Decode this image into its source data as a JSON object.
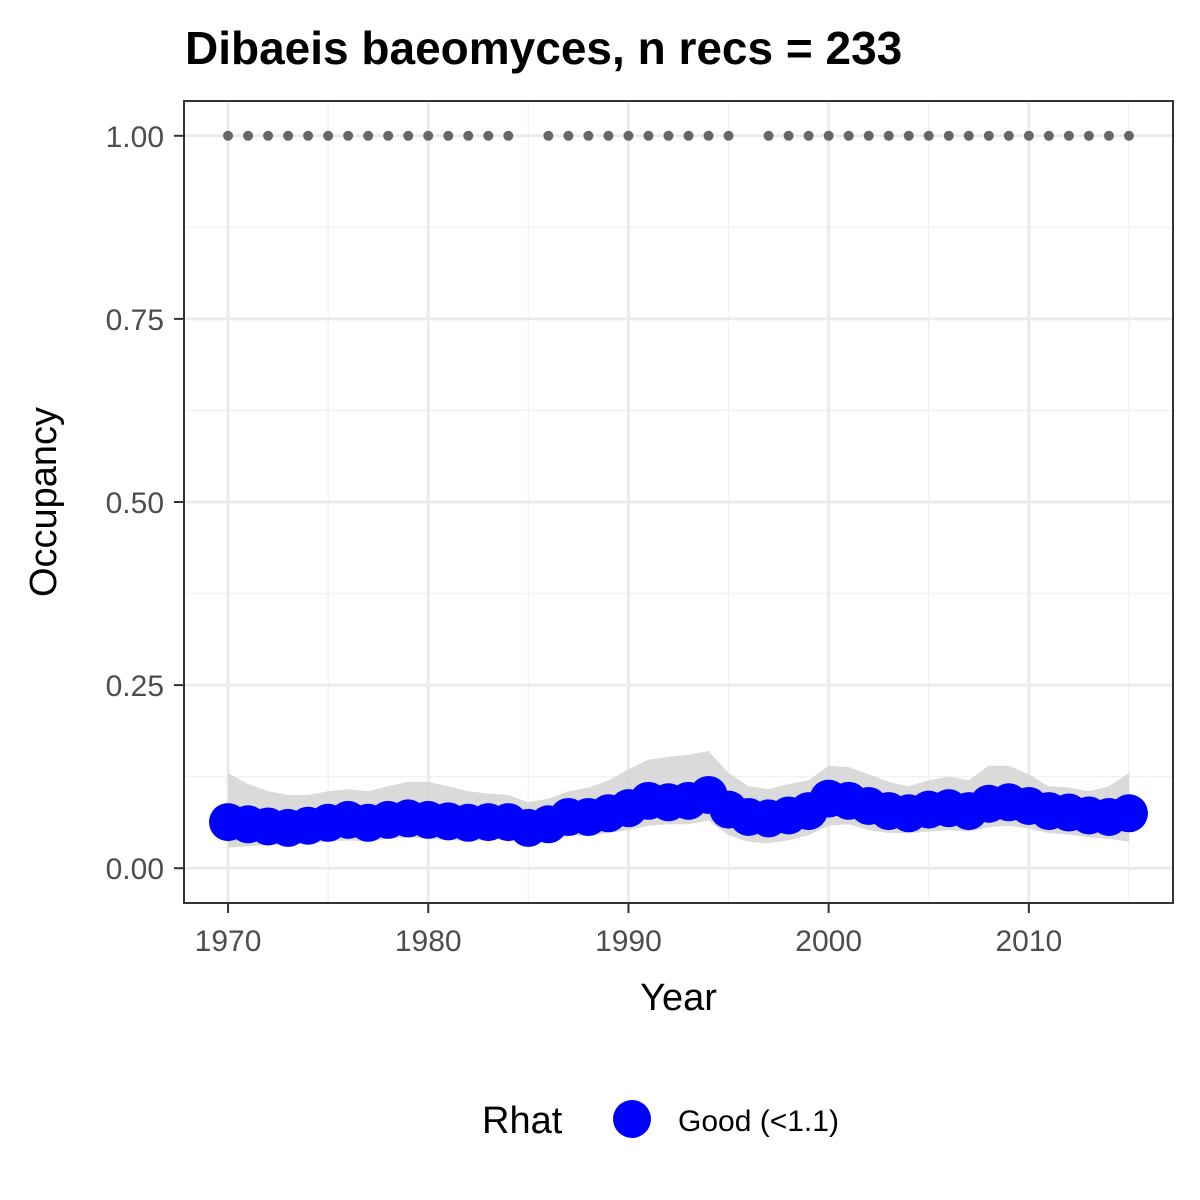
{
  "chart_data": {
    "type": "line",
    "title": "Dibaeis baeomyces, n recs = 233",
    "xlabel": "Year",
    "ylabel": "Occupancy",
    "xlim": [
      1967.8,
      1917.2
    ],
    "ylim": [
      -0.0475,
      1.0475
    ],
    "x_ticks": [
      1970,
      1980,
      1990,
      2000,
      2010
    ],
    "x_tick_labels": [
      "1970",
      "1980",
      "1990",
      "2000",
      "2010"
    ],
    "y_ticks": [
      0,
      0.25,
      0.5,
      0.75,
      1.0
    ],
    "y_tick_labels": [
      "0.00",
      "0.25",
      "0.50",
      "0.75",
      "1.00"
    ],
    "grid": true,
    "colors": {
      "series": "#0000ff",
      "ribbon": "#d3d3d3",
      "records": "#666666",
      "grid": "#ebebeb",
      "border": "#333333"
    },
    "series": [
      {
        "x": [
          1970,
          1971,
          1972,
          1973,
          1974,
          1975,
          1976,
          1977,
          1978,
          1979,
          1980,
          1981,
          1982,
          1983,
          1984,
          1985,
          1986,
          1987,
          1988,
          1989,
          1990,
          1991,
          1992,
          1993,
          1994,
          1995,
          1996,
          1997,
          1998,
          1999,
          2000,
          2001,
          2002,
          2003,
          2004,
          2005,
          2006,
          2007,
          2008,
          2009,
          2010,
          2011,
          2012,
          2013,
          2014,
          2015
        ],
        "y": [
          0.063,
          0.06,
          0.057,
          0.055,
          0.058,
          0.062,
          0.066,
          0.062,
          0.066,
          0.068,
          0.066,
          0.064,
          0.062,
          0.063,
          0.063,
          0.055,
          0.06,
          0.07,
          0.07,
          0.075,
          0.082,
          0.092,
          0.09,
          0.092,
          0.1,
          0.08,
          0.07,
          0.068,
          0.072,
          0.078,
          0.095,
          0.092,
          0.085,
          0.078,
          0.075,
          0.08,
          0.082,
          0.078,
          0.088,
          0.09,
          0.085,
          0.078,
          0.076,
          0.072,
          0.07,
          0.075
        ],
        "lower": [
          0.028,
          0.03,
          0.032,
          0.032,
          0.034,
          0.036,
          0.038,
          0.036,
          0.04,
          0.042,
          0.04,
          0.038,
          0.038,
          0.038,
          0.04,
          0.035,
          0.036,
          0.044,
          0.044,
          0.048,
          0.052,
          0.058,
          0.06,
          0.06,
          0.065,
          0.045,
          0.036,
          0.034,
          0.038,
          0.045,
          0.058,
          0.06,
          0.052,
          0.048,
          0.048,
          0.05,
          0.052,
          0.05,
          0.056,
          0.058,
          0.054,
          0.048,
          0.046,
          0.042,
          0.04,
          0.036
        ],
        "upper": [
          0.13,
          0.115,
          0.105,
          0.1,
          0.1,
          0.105,
          0.108,
          0.105,
          0.112,
          0.118,
          0.118,
          0.112,
          0.105,
          0.102,
          0.1,
          0.09,
          0.095,
          0.105,
          0.11,
          0.12,
          0.135,
          0.148,
          0.152,
          0.155,
          0.16,
          0.13,
          0.112,
          0.108,
          0.115,
          0.12,
          0.14,
          0.138,
          0.128,
          0.118,
          0.112,
          0.12,
          0.125,
          0.12,
          0.14,
          0.14,
          0.128,
          0.112,
          0.11,
          0.105,
          0.112,
          0.13
        ]
      }
    ],
    "record_years": [
      1970,
      1971,
      1972,
      1973,
      1974,
      1975,
      1976,
      1977,
      1978,
      1979,
      1980,
      1981,
      1982,
      1983,
      1984,
      1986,
      1987,
      1988,
      1989,
      1990,
      1991,
      1992,
      1993,
      1994,
      1995,
      1997,
      1998,
      1999,
      2000,
      2001,
      2002,
      2003,
      2004,
      2005,
      2006,
      2007,
      2008,
      2009,
      2010,
      2011,
      2012,
      2013,
      2014,
      2015
    ],
    "record_value": 1.0,
    "legend": {
      "title": "Rhat",
      "entries": [
        {
          "label": "Good (<1.1)",
          "color": "#0000ff"
        }
      ],
      "position": "bottom"
    }
  }
}
